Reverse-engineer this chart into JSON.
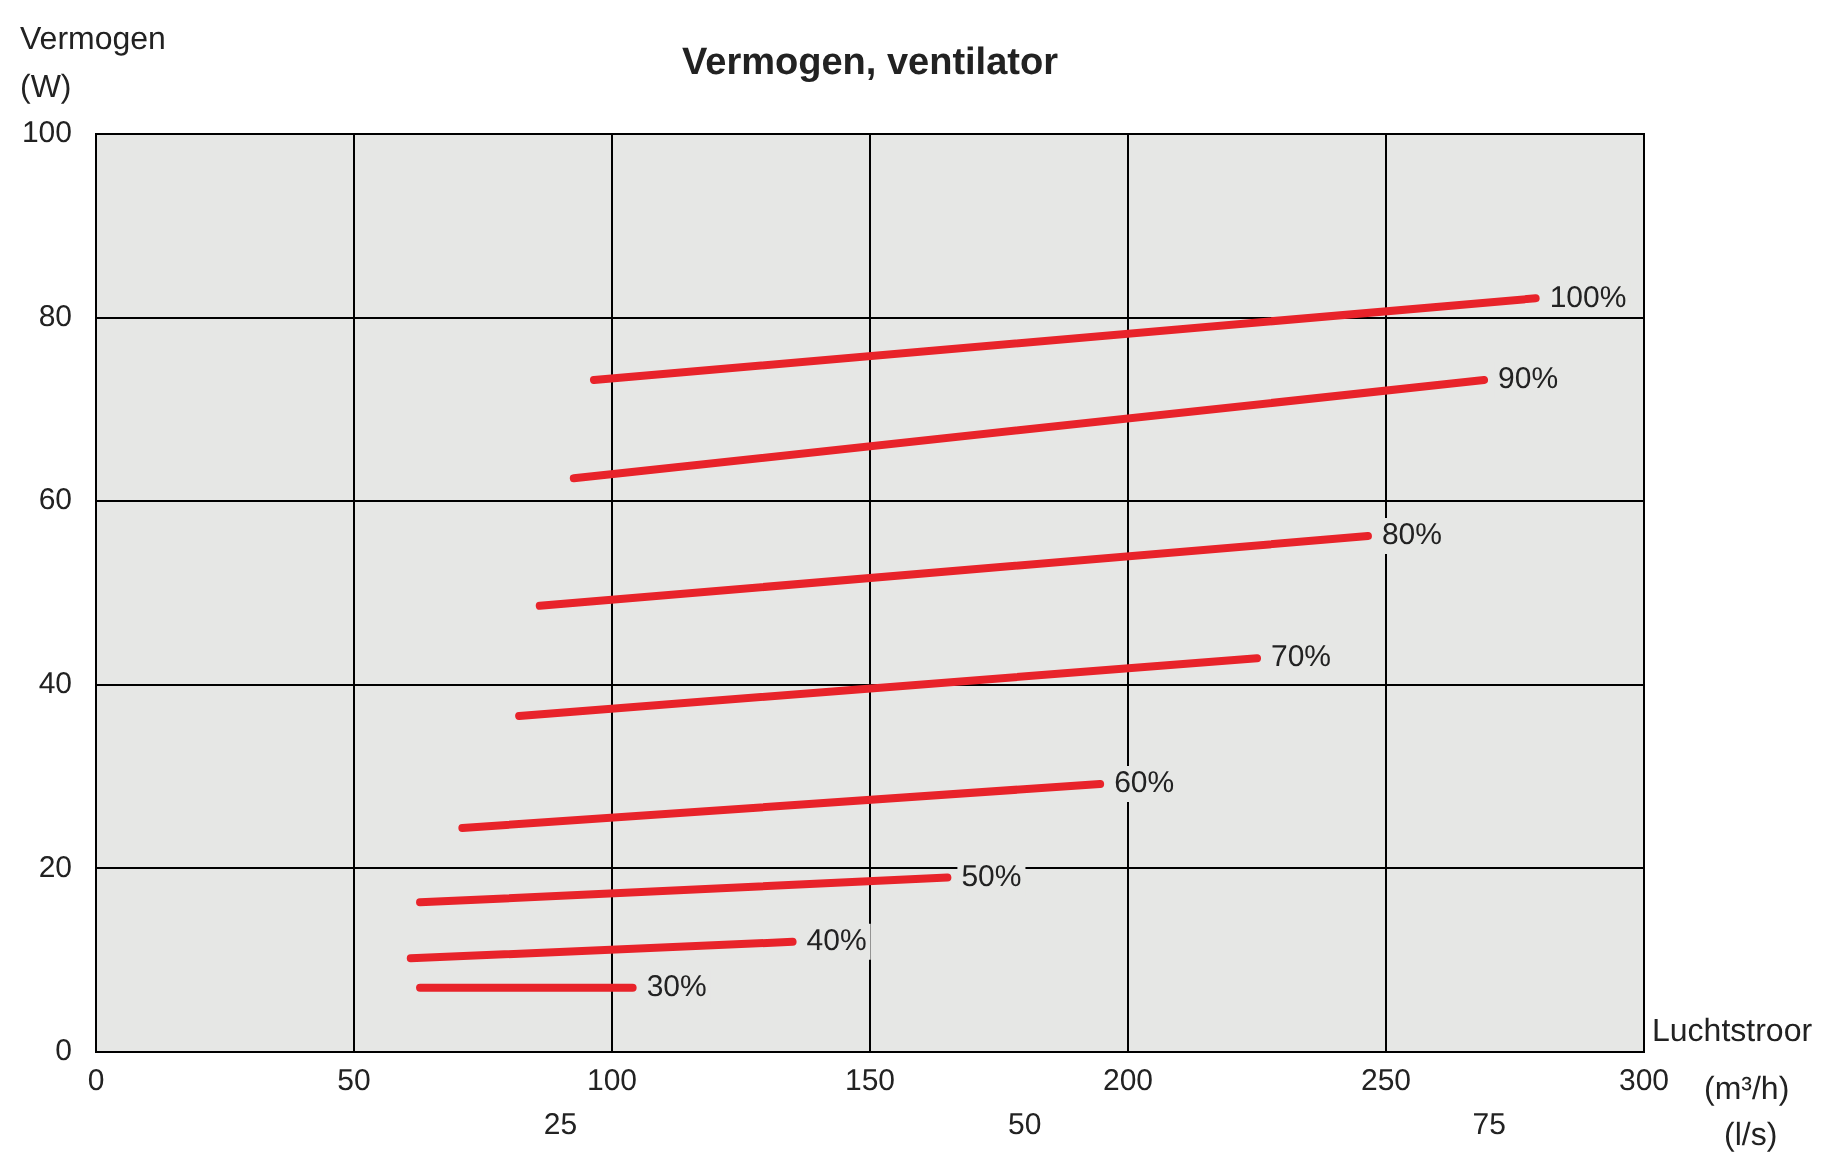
{
  "chart_data": {
    "type": "line",
    "title": "Vermogen, ventilator",
    "ylabel": "Vermogen (W)",
    "xlabel": "Luchtstroor (m³/h)",
    "x2label": "(l/s)",
    "xlim": [
      0,
      300
    ],
    "xticks": [
      0,
      50,
      100,
      150,
      200,
      250,
      300
    ],
    "x2lim": [
      0,
      83.333
    ],
    "x2ticks": [
      25,
      50,
      75
    ],
    "ylim": [
      0,
      100
    ],
    "yticks": [
      0,
      20,
      40,
      60,
      80,
      100
    ],
    "grid": true,
    "legend": false,
    "marker": "none",
    "line_style": "solid",
    "series": [
      {
        "name": "100%",
        "color": "#e8232a",
        "x": [
          96.5,
          279
        ],
        "values": [
          73.2,
          82.1
        ]
      },
      {
        "name": "90%",
        "color": "#e8232a",
        "x": [
          92.6,
          269
        ],
        "values": [
          62.5,
          73.2
        ]
      },
      {
        "name": "80%",
        "color": "#e8232a",
        "x": [
          86,
          246.5
        ],
        "values": [
          48.6,
          56.2
        ]
      },
      {
        "name": "70%",
        "color": "#e8232a",
        "x": [
          82,
          225
        ],
        "values": [
          36.6,
          42.9
        ]
      },
      {
        "name": "60%",
        "color": "#e8232a",
        "x": [
          71,
          194.6
        ],
        "values": [
          24.4,
          29.2
        ]
      },
      {
        "name": "50%",
        "color": "#e8232a",
        "x": [
          62.8,
          165
        ],
        "values": [
          16.3,
          19.0
        ]
      },
      {
        "name": "40%",
        "color": "#e8232a",
        "x": [
          61,
          135
        ],
        "values": [
          10.2,
          12.0
        ]
      },
      {
        "name": "30%",
        "color": "#e8232a",
        "x": [
          62.8,
          104
        ],
        "values": [
          7.0,
          7.0
        ]
      }
    ]
  }
}
